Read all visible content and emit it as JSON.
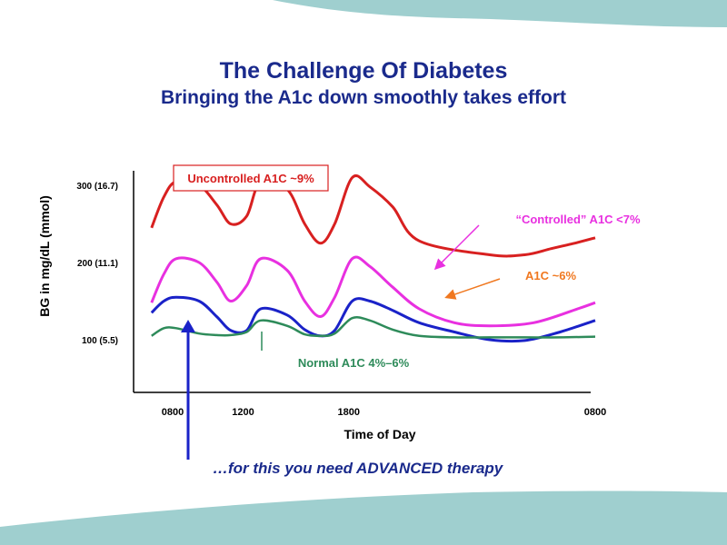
{
  "slide": {
    "title": "The Challenge Of Diabetes",
    "subtitle": "Bringing the A1c down smoothly takes effort",
    "footer_note": "…for this you need ADVANCED therapy"
  },
  "colors": {
    "title": "#1a2a8c",
    "teal_band": "#9fcfcf",
    "uncontrolled": "#d82020",
    "controlled": "#e830e0",
    "a1c6": "#1a22c8",
    "normal": "#2e8b5a",
    "a1c6_label": "#f07820",
    "arrow_blue": "#1a22c8"
  },
  "chart_data": {
    "type": "line",
    "ylabel": "BG in mg/dL (mmol)",
    "xlabel": "Time of Day",
    "x_ticks": [
      "0800",
      "1200",
      "1800",
      "0800"
    ],
    "y_ticks": [
      "100 (5.5)",
      "200 (11.1)",
      "300 (16.7)"
    ],
    "y_tick_values": [
      100,
      200,
      300
    ],
    "ylim": [
      20,
      325
    ],
    "x_range_hours": [
      8,
      32
    ],
    "x_tick_hours": [
      8,
      12,
      18,
      32
    ],
    "grid": false,
    "series": [
      {
        "name": "Uncontrolled A1C ~9%",
        "color_key": "uncontrolled",
        "x": [
          6.8,
          7.5,
          8.2,
          9.5,
          10.5,
          11.3,
          12.2,
          13.0,
          14.5,
          15.5,
          16.4,
          17.2,
          18.2,
          19.2,
          20.5,
          22.0,
          26.0,
          28.0,
          29.5,
          31.0,
          32.0
        ],
        "y": [
          245,
          285,
          305,
          300,
          275,
          250,
          260,
          305,
          295,
          250,
          225,
          250,
          310,
          298,
          272,
          228,
          210,
          210,
          218,
          226,
          232
        ]
      },
      {
        "name": "“Controlled” A1C <7%",
        "color_key": "controlled",
        "x": [
          6.8,
          7.5,
          8.2,
          9.5,
          10.5,
          11.3,
          12.2,
          13.0,
          14.5,
          15.5,
          16.4,
          17.2,
          18.2,
          19.2,
          20.5,
          22.0,
          24.0,
          26.0,
          28.5,
          31.0,
          32.0
        ],
        "y": [
          148,
          185,
          205,
          200,
          175,
          150,
          170,
          205,
          190,
          150,
          130,
          155,
          205,
          195,
          168,
          140,
          122,
          118,
          122,
          140,
          148
        ]
      },
      {
        "name": "A1C ~6%",
        "color_key": "a1c6",
        "x": [
          6.8,
          7.5,
          8.2,
          9.5,
          10.5,
          11.3,
          12.2,
          13.0,
          14.5,
          15.5,
          16.4,
          17.2,
          18.2,
          19.2,
          20.5,
          22.0,
          24.0,
          26.0,
          28.0,
          30.0,
          32.0
        ],
        "y": [
          135,
          150,
          155,
          150,
          130,
          112,
          112,
          140,
          132,
          113,
          105,
          112,
          150,
          150,
          138,
          122,
          110,
          100,
          99,
          110,
          125
        ]
      },
      {
        "name": "Normal A1C  4%–6%",
        "color_key": "normal",
        "x": [
          6.8,
          7.5,
          8.2,
          9.5,
          10.5,
          11.3,
          12.2,
          13.0,
          14.5,
          15.5,
          16.4,
          17.2,
          18.2,
          19.2,
          20.5,
          22.0,
          24.0,
          26.0,
          28.0,
          30.0,
          32.0
        ],
        "y": [
          105,
          115,
          115,
          108,
          106,
          106,
          110,
          125,
          118,
          107,
          105,
          108,
          128,
          125,
          113,
          105,
          103,
          103,
          103,
          103,
          104
        ]
      }
    ],
    "annotations": [
      {
        "text": "Uncontrolled A1C ~9%",
        "color_key": "uncontrolled",
        "boxed": true
      },
      {
        "text": "“Controlled” A1C <7%",
        "color_key": "controlled"
      },
      {
        "text": "A1C ~6%",
        "color_key": "a1c6_label"
      },
      {
        "text": "Normal A1C  4%–6%",
        "color_key": "normal"
      }
    ]
  }
}
